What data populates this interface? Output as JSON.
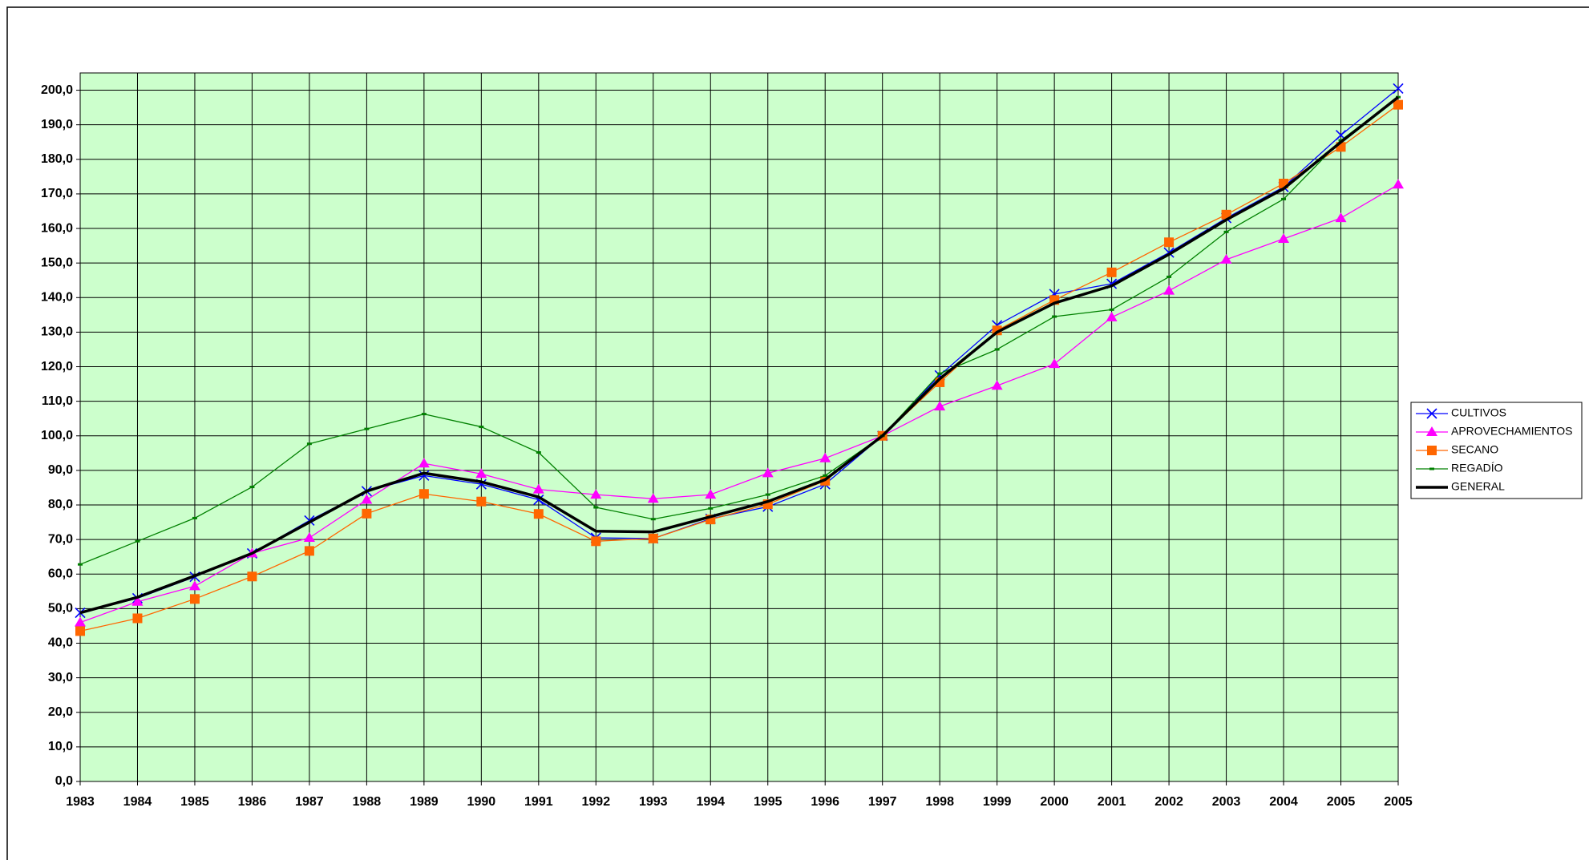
{
  "chart_data": {
    "type": "line",
    "categories": [
      "1983",
      "1984",
      "1985",
      "1986",
      "1987",
      "1988",
      "1989",
      "1990",
      "1991",
      "1992",
      "1993",
      "1994",
      "1995",
      "1996",
      "1997",
      "1998",
      "1999",
      "2000",
      "2001",
      "2002",
      "2003",
      "2004",
      "2005",
      "2005"
    ],
    "series": [
      {
        "name": "CULTIVOS",
        "color": "#0000ff",
        "marker": "x",
        "width": 1.3,
        "values": [
          48.8,
          53,
          59.2,
          66,
          75.5,
          84,
          88.5,
          86,
          81.5,
          70.5,
          70.3,
          76,
          79.5,
          86,
          100,
          117.5,
          132,
          141,
          144,
          153,
          163,
          172,
          187,
          200.5
        ]
      },
      {
        "name": "APROVECHAMIENTOS",
        "color": "#ff00ff",
        "marker": "triangle",
        "width": 1.3,
        "values": [
          46,
          52,
          56.5,
          66,
          70.5,
          81.5,
          92,
          89,
          84.5,
          83,
          81.8,
          83,
          89.2,
          93.5,
          100,
          108.5,
          114.5,
          120.8,
          134.3,
          142,
          151,
          157,
          163,
          172.7
        ]
      },
      {
        "name": "SECANO",
        "color": "#ff6600",
        "marker": "square",
        "width": 1.3,
        "values": [
          43.5,
          47.2,
          52.8,
          59.3,
          66.7,
          77.5,
          83.2,
          81,
          77.4,
          69.5,
          70.3,
          75.8,
          80.2,
          87,
          100,
          115.5,
          130.5,
          139.3,
          147.3,
          156,
          164,
          173,
          183.6,
          195.8
        ]
      },
      {
        "name": "REGADÍO",
        "color": "#008000",
        "marker": "dash",
        "width": 1.3,
        "values": [
          62.8,
          69.5,
          76.2,
          85.2,
          97.7,
          102,
          106.3,
          102.6,
          95.2,
          79.3,
          75.9,
          79,
          83,
          88.5,
          100,
          118,
          125,
          134.5,
          136.5,
          146,
          159,
          168.5,
          185.5,
          198
        ]
      },
      {
        "name": "GENERAL",
        "color": "#000000",
        "marker": "none",
        "width": 3.5,
        "values": [
          48.8,
          53.3,
          59.5,
          66,
          75,
          84,
          89.2,
          86.7,
          82.3,
          72.4,
          72.2,
          76.6,
          81,
          87.3,
          100,
          116.5,
          130,
          138.4,
          143.4,
          152.5,
          162.5,
          171.5,
          185,
          198
        ]
      }
    ],
    "ylim": [
      0,
      205
    ],
    "yticks": [
      {
        "value": 0,
        "label": "0,0"
      },
      {
        "value": 10,
        "label": "10,0"
      },
      {
        "value": 20,
        "label": "20,0"
      },
      {
        "value": 30,
        "label": "30,0"
      },
      {
        "value": 40,
        "label": "40,0"
      },
      {
        "value": 50,
        "label": "50,0"
      },
      {
        "value": 60,
        "label": "60,0"
      },
      {
        "value": 70,
        "label": "70,0"
      },
      {
        "value": 80,
        "label": "80,0"
      },
      {
        "value": 90,
        "label": "90,0"
      },
      {
        "value": 100,
        "label": "100,0"
      },
      {
        "value": 110,
        "label": "110,0"
      },
      {
        "value": 120,
        "label": "120,0"
      },
      {
        "value": 130,
        "label": "130,0"
      },
      {
        "value": 140,
        "label": "140,0"
      },
      {
        "value": 150,
        "label": "150,0"
      },
      {
        "value": 160,
        "label": "160,0"
      },
      {
        "value": 170,
        "label": "170,0"
      },
      {
        "value": 180,
        "label": "180,0"
      },
      {
        "value": 190,
        "label": "190,0"
      },
      {
        "value": 200,
        "label": "200,0"
      }
    ],
    "grid": true,
    "plot_background": "#ccffcc",
    "legend": "right"
  }
}
